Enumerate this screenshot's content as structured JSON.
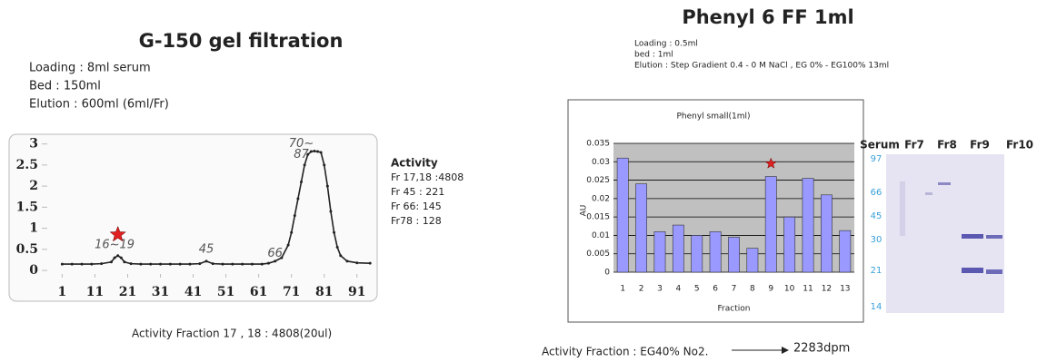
{
  "left": {
    "title": "G-150 gel filtration",
    "notes": [
      "Loading : 8ml serum",
      "Bed : 150ml",
      "Elution : 600ml (6ml/Fr)"
    ],
    "activity": [
      "Activity",
      "Fr 17,18 :4808",
      "Fr 45 : 221",
      "Fr 66: 145",
      "Fr78 : 128"
    ],
    "footer": "Activity Fraction 17 , 18 : 4808(20ul)"
  },
  "right": {
    "title": "Phenyl 6 FF 1ml",
    "notes": [
      "Loading : 0.5ml",
      "bed : 1ml",
      "Elution : Step Gradient 0.4 - 0 M NaCl , EG 0% - EG100% 13ml"
    ],
    "gel_lanes": [
      "Serum",
      "Fr7",
      "Fr8",
      "Fr9",
      "Fr10"
    ],
    "gel_markers": [
      "97",
      "66",
      "45",
      "30",
      "21",
      "14"
    ],
    "footer": "Activity Fraction : EG40% No2.",
    "result": "2283dpm"
  },
  "chart_data": [
    {
      "type": "line",
      "color": "#222222",
      "x": [
        1,
        4,
        7,
        10,
        13,
        16,
        17,
        18,
        19,
        20,
        22,
        25,
        28,
        31,
        34,
        37,
        40,
        43,
        45,
        47,
        50,
        53,
        56,
        59,
        62,
        64,
        66,
        68,
        70,
        71,
        72,
        73,
        74,
        75,
        76,
        77,
        78,
        79,
        80,
        81,
        82,
        83,
        84,
        85,
        86,
        88,
        91,
        95
      ],
      "values": [
        0.15,
        0.15,
        0.15,
        0.15,
        0.16,
        0.2,
        0.3,
        0.35,
        0.3,
        0.2,
        0.16,
        0.15,
        0.15,
        0.15,
        0.15,
        0.15,
        0.15,
        0.16,
        0.22,
        0.16,
        0.15,
        0.15,
        0.15,
        0.15,
        0.15,
        0.17,
        0.22,
        0.3,
        0.6,
        0.9,
        1.3,
        1.7,
        2.1,
        2.5,
        2.75,
        2.82,
        2.83,
        2.82,
        2.8,
        2.5,
        2.0,
        1.4,
        0.9,
        0.55,
        0.35,
        0.22,
        0.18,
        0.17
      ],
      "xlim": [
        -3,
        98
      ],
      "ylim": [
        -0.3,
        3.1
      ],
      "xticks": [
        1,
        11,
        21,
        31,
        41,
        51,
        61,
        71,
        81,
        91
      ],
      "yticks": [
        0,
        0.5,
        1,
        1.5,
        2,
        2.5,
        3
      ],
      "annotations": [
        {
          "text": "16~19",
          "x": 17,
          "y": 0.6
        },
        {
          "text": "45",
          "x": 45,
          "y": 0.5
        },
        {
          "text": "66",
          "x": 66,
          "y": 0.4
        },
        {
          "text": "70~",
          "x": 74,
          "y": 3.0
        },
        {
          "text": "87",
          "x": 74,
          "y": 2.75
        }
      ],
      "marker": {
        "x": 18,
        "y": 0.85,
        "color": "#e02020"
      }
    },
    {
      "type": "bar",
      "title": "Phenyl small(1ml)",
      "x_label": "Fraction",
      "y_label": "AU",
      "color": "#9999ff",
      "categories": [
        "1",
        "2",
        "3",
        "4",
        "5",
        "6",
        "7",
        "8",
        "9",
        "10",
        "11",
        "12",
        "13"
      ],
      "values": [
        0.031,
        0.024,
        0.011,
        0.0128,
        0.01,
        0.011,
        0.0095,
        0.0065,
        0.026,
        0.015,
        0.0255,
        0.021,
        0.0113
      ],
      "ylim": [
        0,
        0.035
      ],
      "yticks": [
        0,
        0.005,
        0.01,
        0.015,
        0.02,
        0.025,
        0.03,
        0.035
      ],
      "grid": true,
      "marker": {
        "category": 8,
        "y": 0.0295,
        "color": "#e02020"
      }
    }
  ]
}
